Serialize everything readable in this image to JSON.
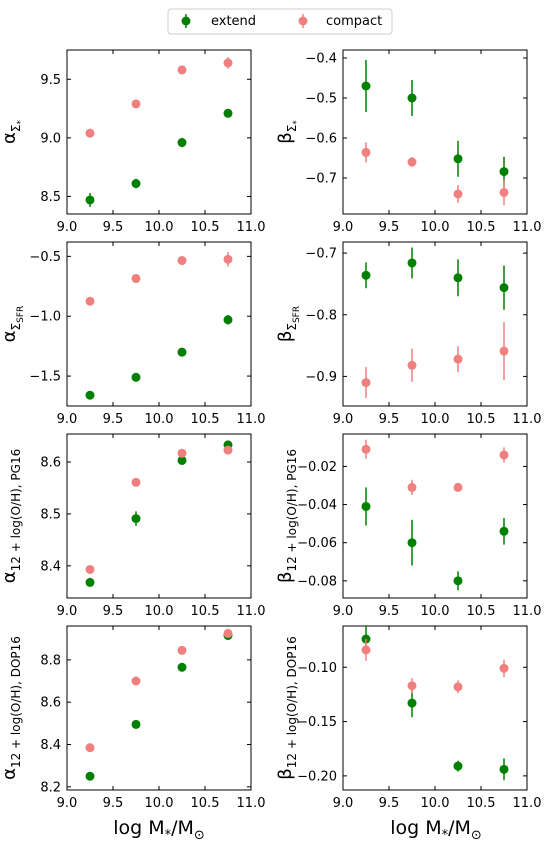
{
  "figure": {
    "xlabel": "log M",
    "xlabel_sub": "*",
    "xlabel_tail": "/M",
    "xlabel_sub2": "⊙"
  },
  "legend": {
    "placement": "top-center",
    "entries": [
      {
        "label": "extend",
        "color": "#008000"
      },
      {
        "label": "compact",
        "color": "#f08080"
      }
    ]
  },
  "chart_data": [
    {
      "type": "scatter",
      "panel": "alpha-sigma-star",
      "ylabel_main": "α",
      "ylabel_sub": "Σ",
      "ylabel_subsub": "*",
      "xlim": [
        9.0,
        11.0
      ],
      "ylim": [
        8.35,
        9.75
      ],
      "xticks": [
        "9.0",
        "9.5",
        "10.0",
        "10.5",
        "11.0"
      ],
      "yticks": [
        8.5,
        9.0,
        9.5
      ],
      "ytick_labels": [
        "8.5",
        "9.0",
        "9.5"
      ],
      "series": [
        {
          "name": "extend",
          "color": "#008000",
          "x": [
            9.25,
            9.75,
            10.25,
            10.75
          ],
          "y": [
            8.47,
            8.61,
            8.96,
            9.21
          ],
          "err": [
            0.06,
            0.04,
            0.04,
            0.03
          ]
        },
        {
          "name": "compact",
          "color": "#f08080",
          "x": [
            9.25,
            9.75,
            10.25,
            10.75
          ],
          "y": [
            9.04,
            9.29,
            9.58,
            9.64
          ],
          "err": [
            0.02,
            0.02,
            0.02,
            0.05
          ]
        }
      ]
    },
    {
      "type": "scatter",
      "panel": "beta-sigma-star",
      "ylabel_main": "β",
      "ylabel_sub": "Σ",
      "ylabel_subsub": "*",
      "xlim": [
        9.0,
        11.0
      ],
      "ylim": [
        -0.79,
        -0.38
      ],
      "xticks": [
        "9.0",
        "9.5",
        "10.0",
        "10.5",
        "11.0"
      ],
      "yticks": [
        -0.7,
        -0.6,
        -0.5,
        -0.4
      ],
      "ytick_labels": [
        "−0.7",
        "−0.6",
        "−0.5",
        "−0.4"
      ],
      "series": [
        {
          "name": "extend",
          "color": "#008000",
          "x": [
            9.25,
            9.75,
            10.25,
            10.75
          ],
          "y": [
            -0.47,
            -0.5,
            -0.652,
            -0.684
          ],
          "err": [
            0.065,
            0.045,
            0.045,
            0.037
          ]
        },
        {
          "name": "compact",
          "color": "#f08080",
          "x": [
            9.25,
            9.75,
            10.25,
            10.75
          ],
          "y": [
            -0.636,
            -0.66,
            -0.74,
            -0.736
          ],
          "err": [
            0.025,
            0.012,
            0.022,
            0.032
          ]
        }
      ]
    },
    {
      "type": "scatter",
      "panel": "alpha-sigma-sfr",
      "ylabel_main": "α",
      "ylabel_sub": "Σ",
      "ylabel_subsub": "SFR",
      "xlim": [
        9.0,
        11.0
      ],
      "ylim": [
        -1.75,
        -0.38
      ],
      "xticks": [
        "9.0",
        "9.5",
        "10.0",
        "10.5",
        "11.0"
      ],
      "yticks": [
        -1.5,
        -1.0,
        -0.5
      ],
      "ytick_labels": [
        "−1.5",
        "−1.0",
        "−0.5"
      ],
      "series": [
        {
          "name": "extend",
          "color": "#008000",
          "x": [
            9.25,
            9.75,
            10.25,
            10.75
          ],
          "y": [
            -1.66,
            -1.51,
            -1.3,
            -1.03
          ],
          "err": [
            0.02,
            0.02,
            0.03,
            0.04
          ]
        },
        {
          "name": "compact",
          "color": "#f08080",
          "x": [
            9.25,
            9.75,
            10.25,
            10.75
          ],
          "y": [
            -0.875,
            -0.685,
            -0.535,
            -0.525
          ],
          "err": [
            0.02,
            0.03,
            0.02,
            0.06
          ]
        }
      ]
    },
    {
      "type": "scatter",
      "panel": "beta-sigma-sfr",
      "ylabel_main": "β",
      "ylabel_sub": "Σ",
      "ylabel_subsub": "SFR",
      "xlim": [
        9.0,
        11.0
      ],
      "ylim": [
        -0.948,
        -0.682
      ],
      "xticks": [
        "9.0",
        "9.5",
        "10.0",
        "10.5",
        "11.0"
      ],
      "yticks": [
        -0.9,
        -0.8,
        -0.7
      ],
      "ytick_labels": [
        "−0.9",
        "−0.8",
        "−0.7"
      ],
      "series": [
        {
          "name": "extend",
          "color": "#008000",
          "x": [
            9.25,
            9.75,
            10.25,
            10.75
          ],
          "y": [
            -0.736,
            -0.716,
            -0.74,
            -0.756
          ],
          "err": [
            0.021,
            0.025,
            0.03,
            0.036
          ]
        },
        {
          "name": "compact",
          "color": "#f08080",
          "x": [
            9.25,
            9.75,
            10.25,
            10.75
          ],
          "y": [
            -0.91,
            -0.882,
            -0.872,
            -0.859
          ],
          "err": [
            0.025,
            0.027,
            0.021,
            0.047
          ]
        }
      ]
    },
    {
      "type": "scatter",
      "panel": "alpha-oh-pg16",
      "ylabel_main": "α",
      "ylabel_sub": "12 + log(O/H), PG16",
      "ylabel_subsub": "",
      "xlim": [
        9.0,
        11.0
      ],
      "ylim": [
        8.338,
        8.654
      ],
      "xticks": [
        "9.0",
        "9.5",
        "10.0",
        "10.5",
        "11.0"
      ],
      "yticks": [
        8.4,
        8.5,
        8.6
      ],
      "ytick_labels": [
        "8.4",
        "8.5",
        "8.6"
      ],
      "series": [
        {
          "name": "extend",
          "color": "#008000",
          "x": [
            9.25,
            9.75,
            10.25,
            10.75
          ],
          "y": [
            8.368,
            8.491,
            8.603,
            8.633
          ],
          "err": [
            0.008,
            0.014,
            0.004,
            0.004
          ]
        },
        {
          "name": "compact",
          "color": "#f08080",
          "x": [
            9.25,
            9.75,
            10.25,
            10.75
          ],
          "y": [
            8.393,
            8.561,
            8.617,
            8.623
          ],
          "err": [
            0.004,
            0.003,
            0.003,
            0.004
          ]
        }
      ]
    },
    {
      "type": "scatter",
      "panel": "beta-oh-pg16",
      "ylabel_main": "β",
      "ylabel_sub": "12 + log(O/H), PG16",
      "ylabel_subsub": "",
      "xlim": [
        9.0,
        11.0
      ],
      "ylim": [
        -0.089,
        -0.003
      ],
      "xticks": [
        "9.0",
        "9.5",
        "10.0",
        "10.5",
        "11.0"
      ],
      "yticks": [
        -0.08,
        -0.06,
        -0.04,
        -0.02
      ],
      "ytick_labels": [
        "−0.08",
        "−0.06",
        "−0.04",
        "−0.02"
      ],
      "series": [
        {
          "name": "extend",
          "color": "#008000",
          "x": [
            9.25,
            9.75,
            10.25,
            10.75
          ],
          "y": [
            -0.041,
            -0.06,
            -0.08,
            -0.054
          ],
          "err": [
            0.01,
            0.012,
            0.005,
            0.007
          ]
        },
        {
          "name": "compact",
          "color": "#f08080",
          "x": [
            9.25,
            9.75,
            10.25,
            10.75
          ],
          "y": [
            -0.011,
            -0.031,
            -0.031,
            -0.014
          ],
          "err": [
            0.005,
            0.004,
            0.002,
            0.004
          ]
        }
      ]
    },
    {
      "type": "scatter",
      "panel": "alpha-oh-dop16",
      "ylabel_main": "α",
      "ylabel_sub": "12 + log(O/H), DOP16",
      "ylabel_subsub": "",
      "xlim": [
        9.0,
        11.0
      ],
      "ylim": [
        8.185,
        8.96
      ],
      "xticks": [
        "9.0",
        "9.5",
        "10.0",
        "10.5",
        "11.0"
      ],
      "yticks": [
        8.2,
        8.4,
        8.6,
        8.8
      ],
      "ytick_labels": [
        "8.2",
        "8.4",
        "8.6",
        "8.8"
      ],
      "series": [
        {
          "name": "extend",
          "color": "#008000",
          "x": [
            9.25,
            9.75,
            10.25,
            10.75
          ],
          "y": [
            8.25,
            8.495,
            8.765,
            8.915
          ],
          "err": [
            0.015,
            0.01,
            0.01,
            0.01
          ]
        },
        {
          "name": "compact",
          "color": "#f08080",
          "x": [
            9.25,
            9.75,
            10.25,
            10.75
          ],
          "y": [
            8.385,
            8.7,
            8.845,
            8.925
          ],
          "err": [
            0.01,
            0.01,
            0.01,
            0.01
          ]
        }
      ]
    },
    {
      "type": "scatter",
      "panel": "beta-oh-dop16",
      "ylabel_main": "β",
      "ylabel_sub": "12 + log(O/H), DOP16",
      "ylabel_subsub": "",
      "xlim": [
        9.0,
        11.0
      ],
      "ylim": [
        -0.213,
        -0.062
      ],
      "xticks": [
        "9.0",
        "9.5",
        "10.0",
        "10.5",
        "11.0"
      ],
      "yticks": [
        -0.2,
        -0.15,
        -0.1
      ],
      "ytick_labels": [
        "−0.20",
        "−0.15",
        "−0.10"
      ],
      "series": [
        {
          "name": "extend",
          "color": "#008000",
          "x": [
            9.25,
            9.75,
            10.25,
            10.75
          ],
          "y": [
            -0.074,
            -0.133,
            -0.191,
            -0.194
          ],
          "err": [
            0.012,
            0.013,
            0.005,
            0.01
          ]
        },
        {
          "name": "compact",
          "color": "#f08080",
          "x": [
            9.25,
            9.75,
            10.25,
            10.75
          ],
          "y": [
            -0.084,
            -0.117,
            -0.118,
            -0.101
          ],
          "err": [
            0.01,
            0.007,
            0.006,
            0.008
          ]
        }
      ]
    }
  ]
}
